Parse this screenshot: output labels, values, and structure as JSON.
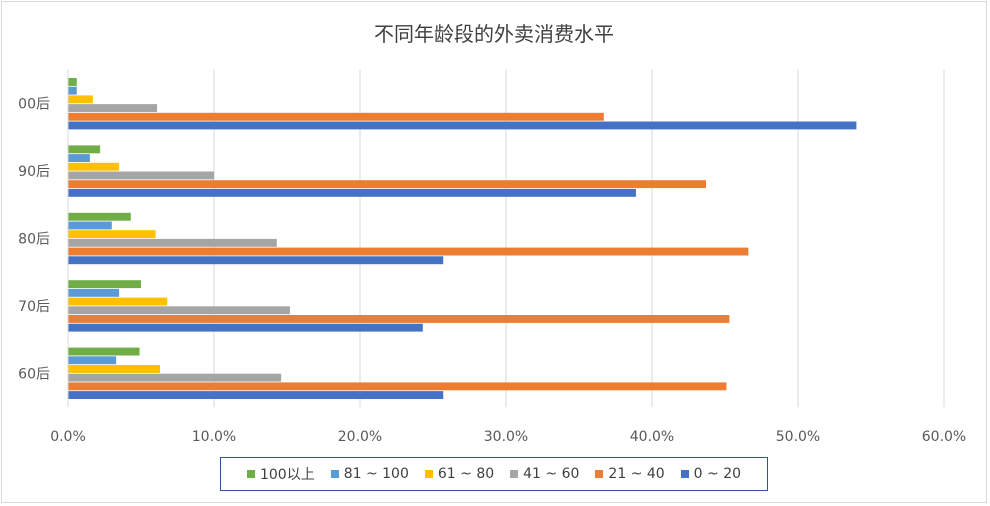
{
  "chart_data": {
    "type": "bar",
    "orientation": "horizontal",
    "title": "不同年龄段的外卖消费水平",
    "categories": [
      "60后",
      "70后",
      "80后",
      "90后",
      "00后"
    ],
    "series": [
      {
        "name": "0 ~ 20",
        "color": "#4472c4",
        "values": [
          25.7,
          24.3,
          25.7,
          38.9,
          54.0
        ]
      },
      {
        "name": "21 ~ 40",
        "color": "#ed7d31",
        "values": [
          45.1,
          45.3,
          46.6,
          43.7,
          36.7
        ]
      },
      {
        "name": "41 ~ 60",
        "color": "#a5a5a5",
        "values": [
          14.6,
          15.2,
          14.3,
          10.0,
          6.1
        ]
      },
      {
        "name": "61 ~ 80",
        "color": "#ffc000",
        "values": [
          6.3,
          6.8,
          6.0,
          3.5,
          1.7
        ]
      },
      {
        "name": "81 ~ 100",
        "color": "#5b9bd5",
        "values": [
          3.3,
          3.5,
          3.0,
          1.5,
          0.6
        ]
      },
      {
        "name": "100以上",
        "color": "#70ad47",
        "values": [
          4.9,
          5.0,
          4.3,
          2.2,
          0.6
        ]
      }
    ],
    "xlim": [
      0,
      60
    ],
    "xticks": [
      "0.0%",
      "10.0%",
      "20.0%",
      "30.0%",
      "40.0%",
      "50.0%",
      "60.0%"
    ],
    "grid": true,
    "legend_position": "bottom",
    "legend_order": [
      "100以上",
      "81 ~ 100",
      "61 ~ 80",
      "41 ~ 60",
      "21 ~ 40",
      "0 ~ 20"
    ]
  }
}
